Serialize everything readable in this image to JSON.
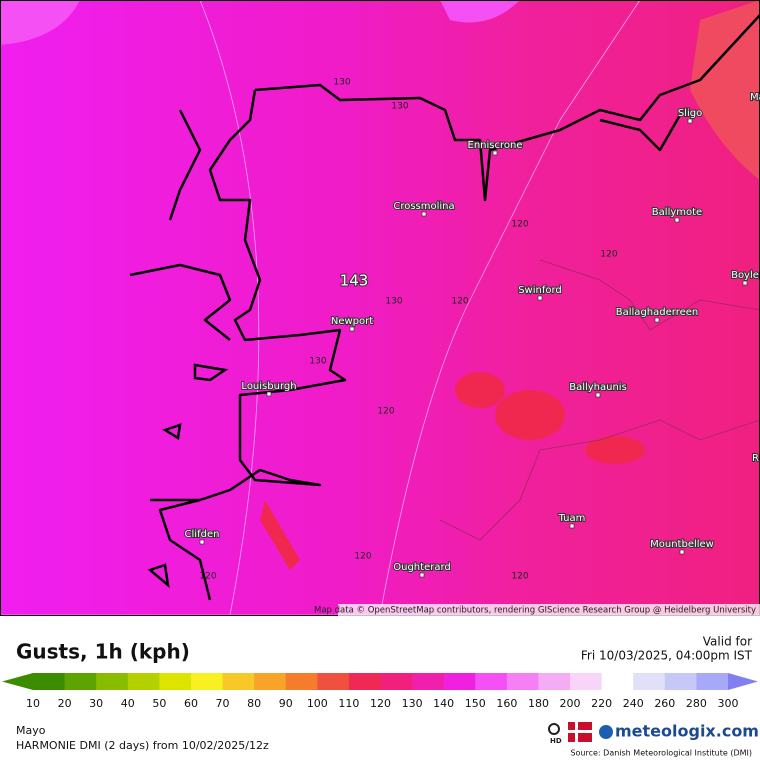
{
  "map": {
    "max_label": 143,
    "contour_labels": [
      130,
      130,
      120,
      120,
      120,
      130,
      130,
      120,
      120,
      120,
      120
    ],
    "towns": [
      "Sligo",
      "Enniscrone",
      "Crossmolina",
      "Ballymote",
      "Boyle",
      "Swinford",
      "Newport",
      "Ballaghaderreen",
      "Louisburgh",
      "Ballyhaunis",
      "Tuam",
      "Clifden",
      "Mountbellew",
      "Oughterard"
    ],
    "edge_labels": [
      "Ma",
      "R"
    ],
    "attribution": "Map data © OpenStreetMap contributors, rendering GIScience Research Group @ Heidelberg University"
  },
  "legend": {
    "title": "Gusts, 1h (kph)",
    "valid_label": "Valid for",
    "valid_time": "Fri 10/03/2025, 04:00pm IST",
    "scale": [
      {
        "value": 10,
        "color": "#3c8c00"
      },
      {
        "value": 20,
        "color": "#5ea400"
      },
      {
        "value": 30,
        "color": "#88bc00"
      },
      {
        "value": 40,
        "color": "#b4d000"
      },
      {
        "value": 50,
        "color": "#dce400"
      },
      {
        "value": 60,
        "color": "#f8f020"
      },
      {
        "value": 70,
        "color": "#f8c828"
      },
      {
        "value": 80,
        "color": "#f8a428"
      },
      {
        "value": 90,
        "color": "#f47c2c"
      },
      {
        "value": 100,
        "color": "#f05040"
      },
      {
        "value": 110,
        "color": "#f02854"
      },
      {
        "value": 120,
        "color": "#f0207c"
      },
      {
        "value": 130,
        "color": "#f020ac"
      },
      {
        "value": 140,
        "color": "#f020e0"
      },
      {
        "value": 150,
        "color": "#f450f4"
      },
      {
        "value": 160,
        "color": "#f480f4"
      },
      {
        "value": 180,
        "color": "#f4acf4"
      },
      {
        "value": 200,
        "color": "#f8d4f8"
      },
      {
        "value": 220,
        "color": "#ffffff"
      },
      {
        "value": 240,
        "color": "#e0e0f8"
      },
      {
        "value": 260,
        "color": "#c8c8f8"
      },
      {
        "value": 280,
        "color": "#a8a8f8"
      },
      {
        "value": 300,
        "color": "#8080f0"
      }
    ]
  },
  "footer": {
    "region": "Mayo",
    "model": "HARMONIE DMI (2 days) from  10/02/2025/12z",
    "hd": "HD",
    "brand": "meteologix.com",
    "source": "Source: Danish Meteorological Institute (DMI)"
  }
}
